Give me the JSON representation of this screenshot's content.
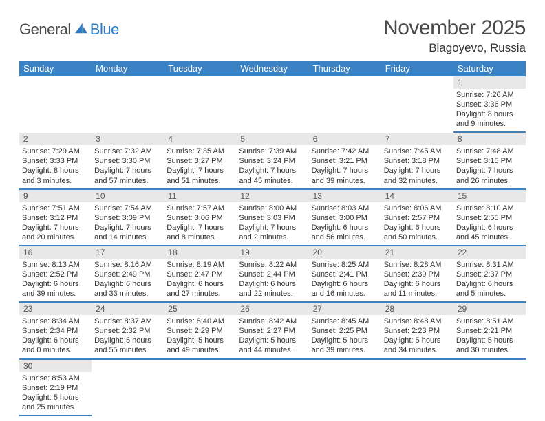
{
  "logo": {
    "part1": "General",
    "part2": "Blue"
  },
  "title": "November 2025",
  "location": "Blagoyevo, Russia",
  "colors": {
    "accent": "#3b82c4",
    "daynum_bg": "#e8e8e8",
    "text": "#333333",
    "heading": "#4a4a4a"
  },
  "weekdays": [
    "Sunday",
    "Monday",
    "Tuesday",
    "Wednesday",
    "Thursday",
    "Friday",
    "Saturday"
  ],
  "weeks": [
    [
      null,
      null,
      null,
      null,
      null,
      null,
      {
        "n": "1",
        "sunrise": "Sunrise: 7:26 AM",
        "sunset": "Sunset: 3:36 PM",
        "daylight": "Daylight: 8 hours and 9 minutes."
      }
    ],
    [
      {
        "n": "2",
        "sunrise": "Sunrise: 7:29 AM",
        "sunset": "Sunset: 3:33 PM",
        "daylight": "Daylight: 8 hours and 3 minutes."
      },
      {
        "n": "3",
        "sunrise": "Sunrise: 7:32 AM",
        "sunset": "Sunset: 3:30 PM",
        "daylight": "Daylight: 7 hours and 57 minutes."
      },
      {
        "n": "4",
        "sunrise": "Sunrise: 7:35 AM",
        "sunset": "Sunset: 3:27 PM",
        "daylight": "Daylight: 7 hours and 51 minutes."
      },
      {
        "n": "5",
        "sunrise": "Sunrise: 7:39 AM",
        "sunset": "Sunset: 3:24 PM",
        "daylight": "Daylight: 7 hours and 45 minutes."
      },
      {
        "n": "6",
        "sunrise": "Sunrise: 7:42 AM",
        "sunset": "Sunset: 3:21 PM",
        "daylight": "Daylight: 7 hours and 39 minutes."
      },
      {
        "n": "7",
        "sunrise": "Sunrise: 7:45 AM",
        "sunset": "Sunset: 3:18 PM",
        "daylight": "Daylight: 7 hours and 32 minutes."
      },
      {
        "n": "8",
        "sunrise": "Sunrise: 7:48 AM",
        "sunset": "Sunset: 3:15 PM",
        "daylight": "Daylight: 7 hours and 26 minutes."
      }
    ],
    [
      {
        "n": "9",
        "sunrise": "Sunrise: 7:51 AM",
        "sunset": "Sunset: 3:12 PM",
        "daylight": "Daylight: 7 hours and 20 minutes."
      },
      {
        "n": "10",
        "sunrise": "Sunrise: 7:54 AM",
        "sunset": "Sunset: 3:09 PM",
        "daylight": "Daylight: 7 hours and 14 minutes."
      },
      {
        "n": "11",
        "sunrise": "Sunrise: 7:57 AM",
        "sunset": "Sunset: 3:06 PM",
        "daylight": "Daylight: 7 hours and 8 minutes."
      },
      {
        "n": "12",
        "sunrise": "Sunrise: 8:00 AM",
        "sunset": "Sunset: 3:03 PM",
        "daylight": "Daylight: 7 hours and 2 minutes."
      },
      {
        "n": "13",
        "sunrise": "Sunrise: 8:03 AM",
        "sunset": "Sunset: 3:00 PM",
        "daylight": "Daylight: 6 hours and 56 minutes."
      },
      {
        "n": "14",
        "sunrise": "Sunrise: 8:06 AM",
        "sunset": "Sunset: 2:57 PM",
        "daylight": "Daylight: 6 hours and 50 minutes."
      },
      {
        "n": "15",
        "sunrise": "Sunrise: 8:10 AM",
        "sunset": "Sunset: 2:55 PM",
        "daylight": "Daylight: 6 hours and 45 minutes."
      }
    ],
    [
      {
        "n": "16",
        "sunrise": "Sunrise: 8:13 AM",
        "sunset": "Sunset: 2:52 PM",
        "daylight": "Daylight: 6 hours and 39 minutes."
      },
      {
        "n": "17",
        "sunrise": "Sunrise: 8:16 AM",
        "sunset": "Sunset: 2:49 PM",
        "daylight": "Daylight: 6 hours and 33 minutes."
      },
      {
        "n": "18",
        "sunrise": "Sunrise: 8:19 AM",
        "sunset": "Sunset: 2:47 PM",
        "daylight": "Daylight: 6 hours and 27 minutes."
      },
      {
        "n": "19",
        "sunrise": "Sunrise: 8:22 AM",
        "sunset": "Sunset: 2:44 PM",
        "daylight": "Daylight: 6 hours and 22 minutes."
      },
      {
        "n": "20",
        "sunrise": "Sunrise: 8:25 AM",
        "sunset": "Sunset: 2:41 PM",
        "daylight": "Daylight: 6 hours and 16 minutes."
      },
      {
        "n": "21",
        "sunrise": "Sunrise: 8:28 AM",
        "sunset": "Sunset: 2:39 PM",
        "daylight": "Daylight: 6 hours and 11 minutes."
      },
      {
        "n": "22",
        "sunrise": "Sunrise: 8:31 AM",
        "sunset": "Sunset: 2:37 PM",
        "daylight": "Daylight: 6 hours and 5 minutes."
      }
    ],
    [
      {
        "n": "23",
        "sunrise": "Sunrise: 8:34 AM",
        "sunset": "Sunset: 2:34 PM",
        "daylight": "Daylight: 6 hours and 0 minutes."
      },
      {
        "n": "24",
        "sunrise": "Sunrise: 8:37 AM",
        "sunset": "Sunset: 2:32 PM",
        "daylight": "Daylight: 5 hours and 55 minutes."
      },
      {
        "n": "25",
        "sunrise": "Sunrise: 8:40 AM",
        "sunset": "Sunset: 2:29 PM",
        "daylight": "Daylight: 5 hours and 49 minutes."
      },
      {
        "n": "26",
        "sunrise": "Sunrise: 8:42 AM",
        "sunset": "Sunset: 2:27 PM",
        "daylight": "Daylight: 5 hours and 44 minutes."
      },
      {
        "n": "27",
        "sunrise": "Sunrise: 8:45 AM",
        "sunset": "Sunset: 2:25 PM",
        "daylight": "Daylight: 5 hours and 39 minutes."
      },
      {
        "n": "28",
        "sunrise": "Sunrise: 8:48 AM",
        "sunset": "Sunset: 2:23 PM",
        "daylight": "Daylight: 5 hours and 34 minutes."
      },
      {
        "n": "29",
        "sunrise": "Sunrise: 8:51 AM",
        "sunset": "Sunset: 2:21 PM",
        "daylight": "Daylight: 5 hours and 30 minutes."
      }
    ],
    [
      {
        "n": "30",
        "sunrise": "Sunrise: 8:53 AM",
        "sunset": "Sunset: 2:19 PM",
        "daylight": "Daylight: 5 hours and 25 minutes."
      },
      null,
      null,
      null,
      null,
      null,
      null
    ]
  ]
}
